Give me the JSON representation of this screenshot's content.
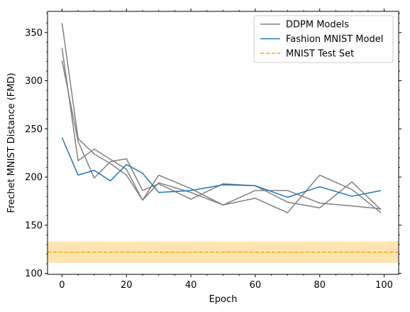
{
  "chart_data": {
    "type": "line",
    "xlabel": "Epoch",
    "ylabel": "Frechet MNIST Distance (FMD)",
    "xlim": [
      -4.5,
      104.5
    ],
    "ylim": [
      99,
      372
    ],
    "x_ticks": [
      0,
      20,
      40,
      60,
      80,
      100
    ],
    "y_ticks": [
      100,
      150,
      200,
      250,
      300,
      350
    ],
    "x_minor_step": 5,
    "y_minor_step": 10,
    "grid": false,
    "legend_position": "top-right",
    "legend": [
      {
        "label": "DDPM Models",
        "style": "line",
        "color": "#808080"
      },
      {
        "label": "Fashion MNIST Model",
        "style": "line",
        "color": "#1f77b4"
      },
      {
        "label": "MNIST Test Set",
        "style": "dashed",
        "color": "#ffa500"
      }
    ],
    "reference_band": {
      "center": 122,
      "low": 111,
      "high": 133,
      "color": "#ffa500",
      "band_opacity": 0.3
    },
    "series": [
      {
        "color": "#808080",
        "x": [
          0,
          5,
          10,
          15,
          20,
          25,
          30,
          40,
          50,
          60,
          70,
          80,
          90,
          99
        ],
        "y": [
          360,
          240,
          224,
          214,
          202,
          176,
          194,
          184,
          171,
          186,
          186,
          173,
          170,
          167
        ]
      },
      {
        "color": "#808080",
        "x": [
          0,
          5,
          10,
          20,
          25,
          30,
          40,
          50,
          60,
          70,
          80,
          90,
          99
        ],
        "y": [
          334,
          217,
          229,
          208,
          176,
          202,
          188,
          171,
          178,
          163,
          202,
          187,
          163
        ]
      },
      {
        "color": "#808080",
        "x": [
          0,
          5,
          10,
          15,
          20,
          25,
          30,
          40,
          50,
          60,
          70,
          80,
          90,
          99
        ],
        "y": [
          321,
          237,
          199,
          216,
          219,
          186,
          193,
          177,
          193,
          191,
          174,
          168,
          195,
          166
        ]
      },
      {
        "name": "Fashion MNIST Model",
        "color": "#1f77b4",
        "x": [
          0,
          5,
          10,
          15,
          20,
          25,
          30,
          40,
          50,
          60,
          70,
          80,
          90,
          99
        ],
        "y": [
          241,
          202,
          207,
          196,
          213,
          204,
          184,
          186,
          192,
          191,
          179,
          190,
          180,
          186
        ]
      }
    ]
  }
}
